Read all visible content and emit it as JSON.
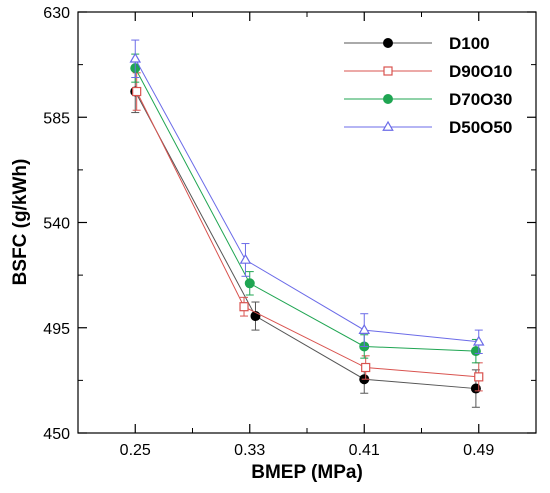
{
  "chart_data": {
    "type": "line",
    "xlabel": "BMEP (MPa)",
    "ylabel": "BSFC (g/kWh)",
    "x": [
      0.25,
      0.33,
      0.41,
      0.49
    ],
    "x_tick_labels": [
      "0.25",
      "0.33",
      "0.41",
      "0.49"
    ],
    "xlim": [
      0.21,
      0.53
    ],
    "ylim": [
      450,
      630
    ],
    "y_ticks": [
      450,
      495,
      540,
      585,
      630
    ],
    "y_tick_labels": [
      "450",
      "495",
      "540",
      "585",
      "630"
    ],
    "grid": false,
    "legend_position": "top-right",
    "series": [
      {
        "name": "D100",
        "marker": "filled-circle",
        "color": "#000000",
        "line_color": "#555555",
        "x": [
          0.25,
          0.334,
          0.41,
          0.488
        ],
        "values": [
          596,
          500,
          473,
          469
        ],
        "error": [
          9,
          6,
          6,
          8
        ]
      },
      {
        "name": "D90O10",
        "marker": "open-square",
        "color": "#d9534f",
        "line_color": "#d9534f",
        "x": [
          0.251,
          0.326,
          0.411,
          0.49
        ],
        "values": [
          596,
          504,
          478,
          474
        ],
        "error": [
          8,
          4,
          5,
          6
        ]
      },
      {
        "name": "D70O30",
        "marker": "filled-circle",
        "color": "#1fa552",
        "line_color": "#1fa552",
        "x": [
          0.25,
          0.33,
          0.41,
          0.488
        ],
        "values": [
          606,
          514,
          487,
          485
        ],
        "error": [
          6,
          5,
          5,
          5
        ]
      },
      {
        "name": "D50O50",
        "marker": "open-triangle",
        "color": "#6b6be8",
        "line_color": "#6b6be8",
        "x": [
          0.25,
          0.327,
          0.41,
          0.49
        ],
        "values": [
          610,
          524,
          494,
          489
        ],
        "error": [
          8,
          7,
          7,
          5
        ]
      }
    ]
  }
}
